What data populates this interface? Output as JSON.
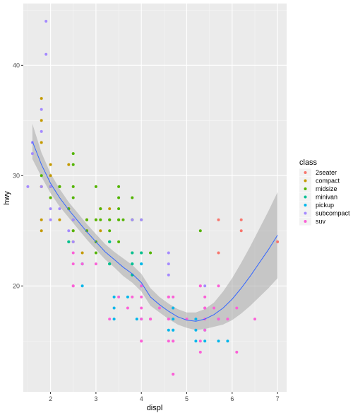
{
  "chart_data": {
    "type": "scatter",
    "title": "",
    "xlabel": "displ",
    "ylabel": "hwy",
    "xlim": [
      1.4,
      7.2
    ],
    "ylim": [
      10.4,
      45.6
    ],
    "x_ticks": [
      2,
      3,
      4,
      5,
      6,
      7
    ],
    "y_ticks": [
      20,
      30,
      40
    ],
    "grid": true,
    "legend_title": "class",
    "legend_position": "right",
    "series": [
      {
        "name": "2seater",
        "color": "#F8766D",
        "points": [
          [
            5.7,
            26
          ],
          [
            5.7,
            23
          ],
          [
            6.2,
            26
          ],
          [
            6.2,
            25
          ],
          [
            7.0,
            24
          ]
        ]
      },
      {
        "name": "compact",
        "color": "#C49A00",
        "points": [
          [
            1.8,
            29
          ],
          [
            1.8,
            29
          ],
          [
            2.0,
            31
          ],
          [
            2.0,
            30
          ],
          [
            2.8,
            26
          ],
          [
            2.8,
            26
          ],
          [
            3.1,
            27
          ],
          [
            1.8,
            26
          ],
          [
            1.8,
            25
          ],
          [
            2.0,
            28
          ],
          [
            2.0,
            29
          ],
          [
            2.8,
            25
          ],
          [
            3.1,
            25
          ],
          [
            1.8,
            37
          ],
          [
            1.8,
            35
          ],
          [
            1.8,
            33
          ],
          [
            2.2,
            29
          ],
          [
            2.4,
            31
          ],
          [
            2.4,
            27
          ],
          [
            3.0,
            26
          ],
          [
            3.3,
            27
          ],
          [
            2.5,
            25
          ],
          [
            2.5,
            24
          ],
          [
            2.2,
            26
          ],
          [
            2.7,
            23
          ]
        ]
      },
      {
        "name": "midsize",
        "color": "#53B400",
        "points": [
          [
            2.8,
            26
          ],
          [
            3.1,
            27
          ],
          [
            4.2,
            23
          ],
          [
            2.4,
            24
          ],
          [
            2.5,
            25
          ],
          [
            2.5,
            26
          ],
          [
            3.5,
            26
          ],
          [
            3.5,
            28
          ],
          [
            3.0,
            26
          ],
          [
            3.0,
            29
          ],
          [
            3.5,
            24
          ],
          [
            3.3,
            22
          ],
          [
            3.3,
            26
          ],
          [
            3.0,
            24
          ],
          [
            3.8,
            26
          ],
          [
            3.8,
            26
          ],
          [
            3.8,
            28
          ],
          [
            4.0,
            23
          ],
          [
            2.5,
            32
          ],
          [
            2.5,
            29
          ],
          [
            2.5,
            28
          ],
          [
            3.3,
            26
          ],
          [
            3.3,
            25
          ],
          [
            5.3,
            25
          ],
          [
            2.2,
            29
          ],
          [
            2.4,
            27
          ],
          [
            3.5,
            26
          ],
          [
            3.5,
            29
          ],
          [
            3.8,
            23
          ],
          [
            2.8,
            25
          ],
          [
            3.1,
            26
          ],
          [
            3.5,
            27
          ],
          [
            4.0,
            26
          ],
          [
            2.0,
            29
          ],
          [
            2.0,
            28
          ],
          [
            2.5,
            31
          ],
          [
            2.2,
            29
          ],
          [
            1.8,
            30
          ],
          [
            3.0,
            23
          ],
          [
            3.3,
            24
          ],
          [
            3.6,
            26
          ],
          [
            3.8,
            21
          ]
        ]
      },
      {
        "name": "minivan",
        "color": "#00C094",
        "points": [
          [
            3.8,
            22
          ],
          [
            3.3,
            22
          ],
          [
            4.0,
            23
          ],
          [
            3.3,
            24
          ],
          [
            3.3,
            24
          ],
          [
            3.8,
            21
          ],
          [
            3.8,
            23
          ],
          [
            3.8,
            22
          ],
          [
            4.0,
            22
          ],
          [
            3.3,
            22
          ],
          [
            2.4,
            24
          ]
        ]
      },
      {
        "name": "pickup",
        "color": "#00B6EB",
        "points": [
          [
            4.7,
            17
          ],
          [
            4.7,
            16
          ],
          [
            5.2,
            17
          ],
          [
            5.7,
            15
          ],
          [
            3.7,
            19
          ],
          [
            3.9,
            17
          ],
          [
            5.2,
            15
          ],
          [
            5.9,
            15
          ],
          [
            4.7,
            16
          ],
          [
            5.4,
            15
          ],
          [
            2.7,
            20
          ],
          [
            2.7,
            22
          ],
          [
            3.4,
            17
          ],
          [
            3.4,
            19
          ],
          [
            4.0,
            17
          ],
          [
            4.0,
            20
          ],
          [
            4.6,
            16
          ],
          [
            5.4,
            16
          ],
          [
            5.2,
            16
          ],
          [
            5.7,
            17
          ],
          [
            2.7,
            22
          ],
          [
            4.7,
            18
          ],
          [
            3.4,
            18
          ],
          [
            4.0,
            22
          ]
        ]
      },
      {
        "name": "subcompact",
        "color": "#A58AFF",
        "points": [
          [
            1.9,
            44
          ],
          [
            1.9,
            41
          ],
          [
            1.6,
            32
          ],
          [
            1.5,
            29
          ],
          [
            1.8,
            34
          ],
          [
            1.8,
            36
          ],
          [
            2.0,
            29
          ],
          [
            2.0,
            27
          ],
          [
            1.6,
            33
          ],
          [
            2.5,
            26
          ],
          [
            2.2,
            27
          ],
          [
            3.8,
            26
          ],
          [
            4.6,
            23
          ],
          [
            4.6,
            22
          ],
          [
            5.4,
            20
          ],
          [
            4.0,
            26
          ],
          [
            2.4,
            25
          ],
          [
            2.0,
            26
          ],
          [
            2.5,
            26
          ],
          [
            4.6,
            21
          ],
          [
            5.4,
            18
          ],
          [
            1.8,
            29
          ],
          [
            2.5,
            24
          ]
        ]
      },
      {
        "name": "suv",
        "color": "#FB61D7",
        "points": [
          [
            5.3,
            20
          ],
          [
            5.3,
            15
          ],
          [
            5.7,
            20
          ],
          [
            6.5,
            17
          ],
          [
            4.2,
            17
          ],
          [
            4.0,
            19
          ],
          [
            4.6,
            19
          ],
          [
            4.2,
            17
          ],
          [
            4.7,
            12
          ],
          [
            5.7,
            17
          ],
          [
            5.9,
            17
          ],
          [
            4.7,
            12
          ],
          [
            6.1,
            14
          ],
          [
            4.0,
            15
          ],
          [
            4.6,
            17
          ],
          [
            5.4,
            19
          ],
          [
            5.4,
            18
          ],
          [
            4.0,
            17
          ],
          [
            4.7,
            15
          ],
          [
            5.0,
            17
          ],
          [
            5.3,
            14
          ],
          [
            5.4,
            17
          ],
          [
            3.7,
            18
          ],
          [
            4.7,
            19
          ],
          [
            5.6,
            18
          ],
          [
            4.4,
            18
          ],
          [
            4.6,
            19
          ],
          [
            4.2,
            17
          ],
          [
            5.3,
            20
          ],
          [
            4.0,
            20
          ],
          [
            3.3,
            17
          ],
          [
            3.8,
            19
          ],
          [
            4.7,
            15
          ],
          [
            4.6,
            17
          ],
          [
            3.5,
            19
          ],
          [
            2.5,
            23
          ],
          [
            2.7,
            22
          ],
          [
            4.0,
            15
          ],
          [
            5.4,
            16
          ],
          [
            5.4,
            18
          ],
          [
            4.6,
            15
          ],
          [
            5.0,
            17
          ],
          [
            4.0,
            18
          ],
          [
            3.0,
            22
          ],
          [
            2.5,
            20
          ],
          [
            5.7,
            17
          ],
          [
            6.1,
            18
          ],
          [
            2.5,
            22
          ],
          [
            2.5,
            20
          ]
        ]
      }
    ],
    "smooth": {
      "color": "#3366FF",
      "line": [
        [
          1.6,
          33.1
        ],
        [
          1.8,
          31.0
        ],
        [
          2.0,
          29.3
        ],
        [
          2.2,
          28.0
        ],
        [
          2.4,
          26.9
        ],
        [
          2.6,
          25.9
        ],
        [
          2.8,
          24.9
        ],
        [
          3.0,
          24.0
        ],
        [
          3.2,
          23.1
        ],
        [
          3.4,
          22.4
        ],
        [
          3.6,
          21.7
        ],
        [
          3.8,
          21.1
        ],
        [
          4.0,
          20.3
        ],
        [
          4.2,
          19.0
        ],
        [
          4.4,
          18.3
        ],
        [
          4.6,
          17.7
        ],
        [
          4.8,
          17.2
        ],
        [
          5.0,
          16.9
        ],
        [
          5.2,
          16.8
        ],
        [
          5.4,
          17.0
        ],
        [
          5.6,
          17.4
        ],
        [
          5.8,
          18.0
        ],
        [
          6.0,
          18.8
        ],
        [
          6.2,
          19.8
        ],
        [
          6.4,
          20.9
        ],
        [
          6.6,
          22.1
        ],
        [
          6.8,
          23.3
        ],
        [
          7.0,
          24.6
        ]
      ],
      "band_upper": [
        [
          1.6,
          34.7
        ],
        [
          1.8,
          32.1
        ],
        [
          2.0,
          30.2
        ],
        [
          2.2,
          28.8
        ],
        [
          2.4,
          27.6
        ],
        [
          2.6,
          26.6
        ],
        [
          2.8,
          25.6
        ],
        [
          3.0,
          24.7
        ],
        [
          3.2,
          23.8
        ],
        [
          3.4,
          23.1
        ],
        [
          3.6,
          22.5
        ],
        [
          3.8,
          21.9
        ],
        [
          4.0,
          21.1
        ],
        [
          4.2,
          19.8
        ],
        [
          4.4,
          19.0
        ],
        [
          4.6,
          18.4
        ],
        [
          4.8,
          17.9
        ],
        [
          5.0,
          17.6
        ],
        [
          5.2,
          17.6
        ],
        [
          5.4,
          17.9
        ],
        [
          5.6,
          18.5
        ],
        [
          5.8,
          19.5
        ],
        [
          6.0,
          20.7
        ],
        [
          6.2,
          22.1
        ],
        [
          6.4,
          23.6
        ],
        [
          6.6,
          25.2
        ],
        [
          6.8,
          26.8
        ],
        [
          7.0,
          28.5
        ]
      ],
      "band_lower": [
        [
          1.6,
          31.5
        ],
        [
          1.8,
          29.9
        ],
        [
          2.0,
          28.4
        ],
        [
          2.2,
          27.2
        ],
        [
          2.4,
          26.2
        ],
        [
          2.6,
          25.2
        ],
        [
          2.8,
          24.2
        ],
        [
          3.0,
          23.3
        ],
        [
          3.2,
          22.4
        ],
        [
          3.4,
          21.7
        ],
        [
          3.6,
          20.9
        ],
        [
          3.8,
          20.3
        ],
        [
          4.0,
          19.5
        ],
        [
          4.2,
          18.2
        ],
        [
          4.4,
          17.6
        ],
        [
          4.6,
          17.0
        ],
        [
          4.8,
          16.5
        ],
        [
          5.0,
          16.2
        ],
        [
          5.2,
          16.0
        ],
        [
          5.4,
          16.1
        ],
        [
          5.6,
          16.3
        ],
        [
          5.8,
          16.5
        ],
        [
          6.0,
          16.9
        ],
        [
          6.2,
          17.5
        ],
        [
          6.4,
          18.2
        ],
        [
          6.6,
          19.0
        ],
        [
          6.8,
          19.8
        ],
        [
          7.0,
          20.7
        ]
      ]
    }
  }
}
